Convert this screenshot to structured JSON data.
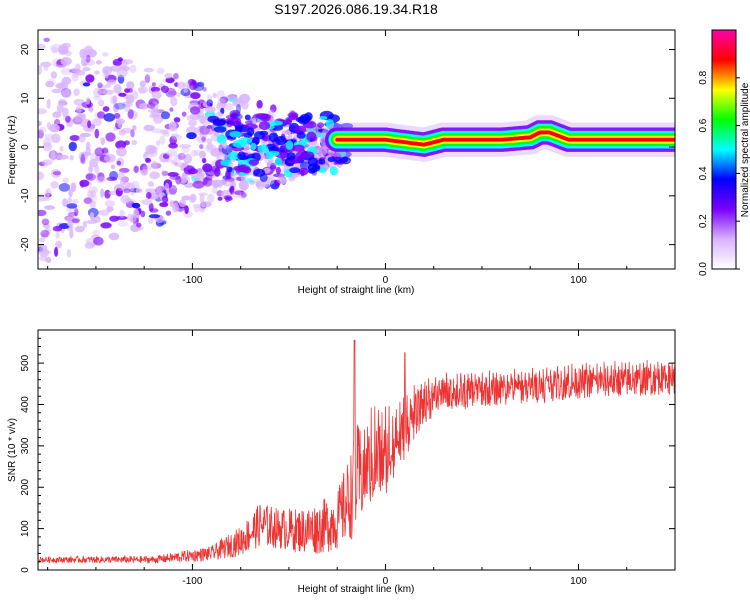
{
  "title": "S197.2026.086.19.34.R18",
  "chart_data": [
    {
      "type": "heatmap",
      "name": "spectrogram",
      "xlabel": "Height of straight line (km)",
      "ylabel": "Frequency (Hz)",
      "xlim": [
        -180,
        150
      ],
      "ylim": [
        -25,
        24
      ],
      "xticks": [
        -100,
        0,
        100
      ],
      "yticks": [
        -20,
        -10,
        0,
        10,
        20
      ],
      "colorbar": {
        "label": "Normalized spectral amplitude",
        "range": [
          0,
          1
        ],
        "ticks": [
          0.0,
          0.2,
          0.4,
          0.6,
          0.8
        ],
        "colors": [
          "#ffffff",
          "#d9b3ff",
          "#7a00ff",
          "#0000ff",
          "#00ffff",
          "#00ff00",
          "#ffff00",
          "#ff0000",
          "#ff00aa"
        ]
      },
      "ridge": {
        "x": [
          -25,
          -20,
          0,
          10,
          20,
          30,
          60,
          75,
          80,
          85,
          95,
          100,
          130,
          150
        ],
        "freq": [
          1.5,
          1.5,
          1.5,
          1.0,
          0.5,
          1.5,
          1.5,
          2.0,
          3.0,
          3.0,
          1.5,
          1.5,
          1.5,
          1.5
        ],
        "amplitude": 0.9
      },
      "scatter_region": {
        "x": [
          -180,
          -20
        ],
        "freq_spread_at_left": 24,
        "freq_spread_at_right": 3
      }
    },
    {
      "type": "line",
      "name": "snr",
      "xlabel": "Height of straight line (km)",
      "ylabel": "SNR (10 * v/v)",
      "xlim": [
        -180,
        150
      ],
      "ylim": [
        0,
        580
      ],
      "xticks": [
        -100,
        0,
        100
      ],
      "yticks": [
        0,
        100,
        200,
        300,
        400,
        500
      ],
      "color": "#ee3333",
      "envelope": {
        "x": [
          -180,
          -120,
          -90,
          -75,
          -65,
          -55,
          -45,
          -35,
          -25,
          -18,
          -15,
          -10,
          -5,
          0,
          5,
          10,
          15,
          20,
          30,
          50,
          80,
          100,
          150
        ],
        "mean": [
          25,
          25,
          40,
          70,
          110,
          100,
          95,
          100,
          120,
          180,
          220,
          240,
          260,
          270,
          300,
          330,
          370,
          400,
          420,
          430,
          440,
          450,
          460
        ],
        "spread": [
          8,
          10,
          20,
          40,
          60,
          55,
          60,
          70,
          80,
          120,
          150,
          110,
          110,
          100,
          80,
          70,
          60,
          50,
          45,
          40,
          40,
          40,
          40
        ]
      },
      "spikes": [
        {
          "x": -16,
          "y": 555
        },
        {
          "x": 10,
          "y": 525
        }
      ]
    }
  ]
}
